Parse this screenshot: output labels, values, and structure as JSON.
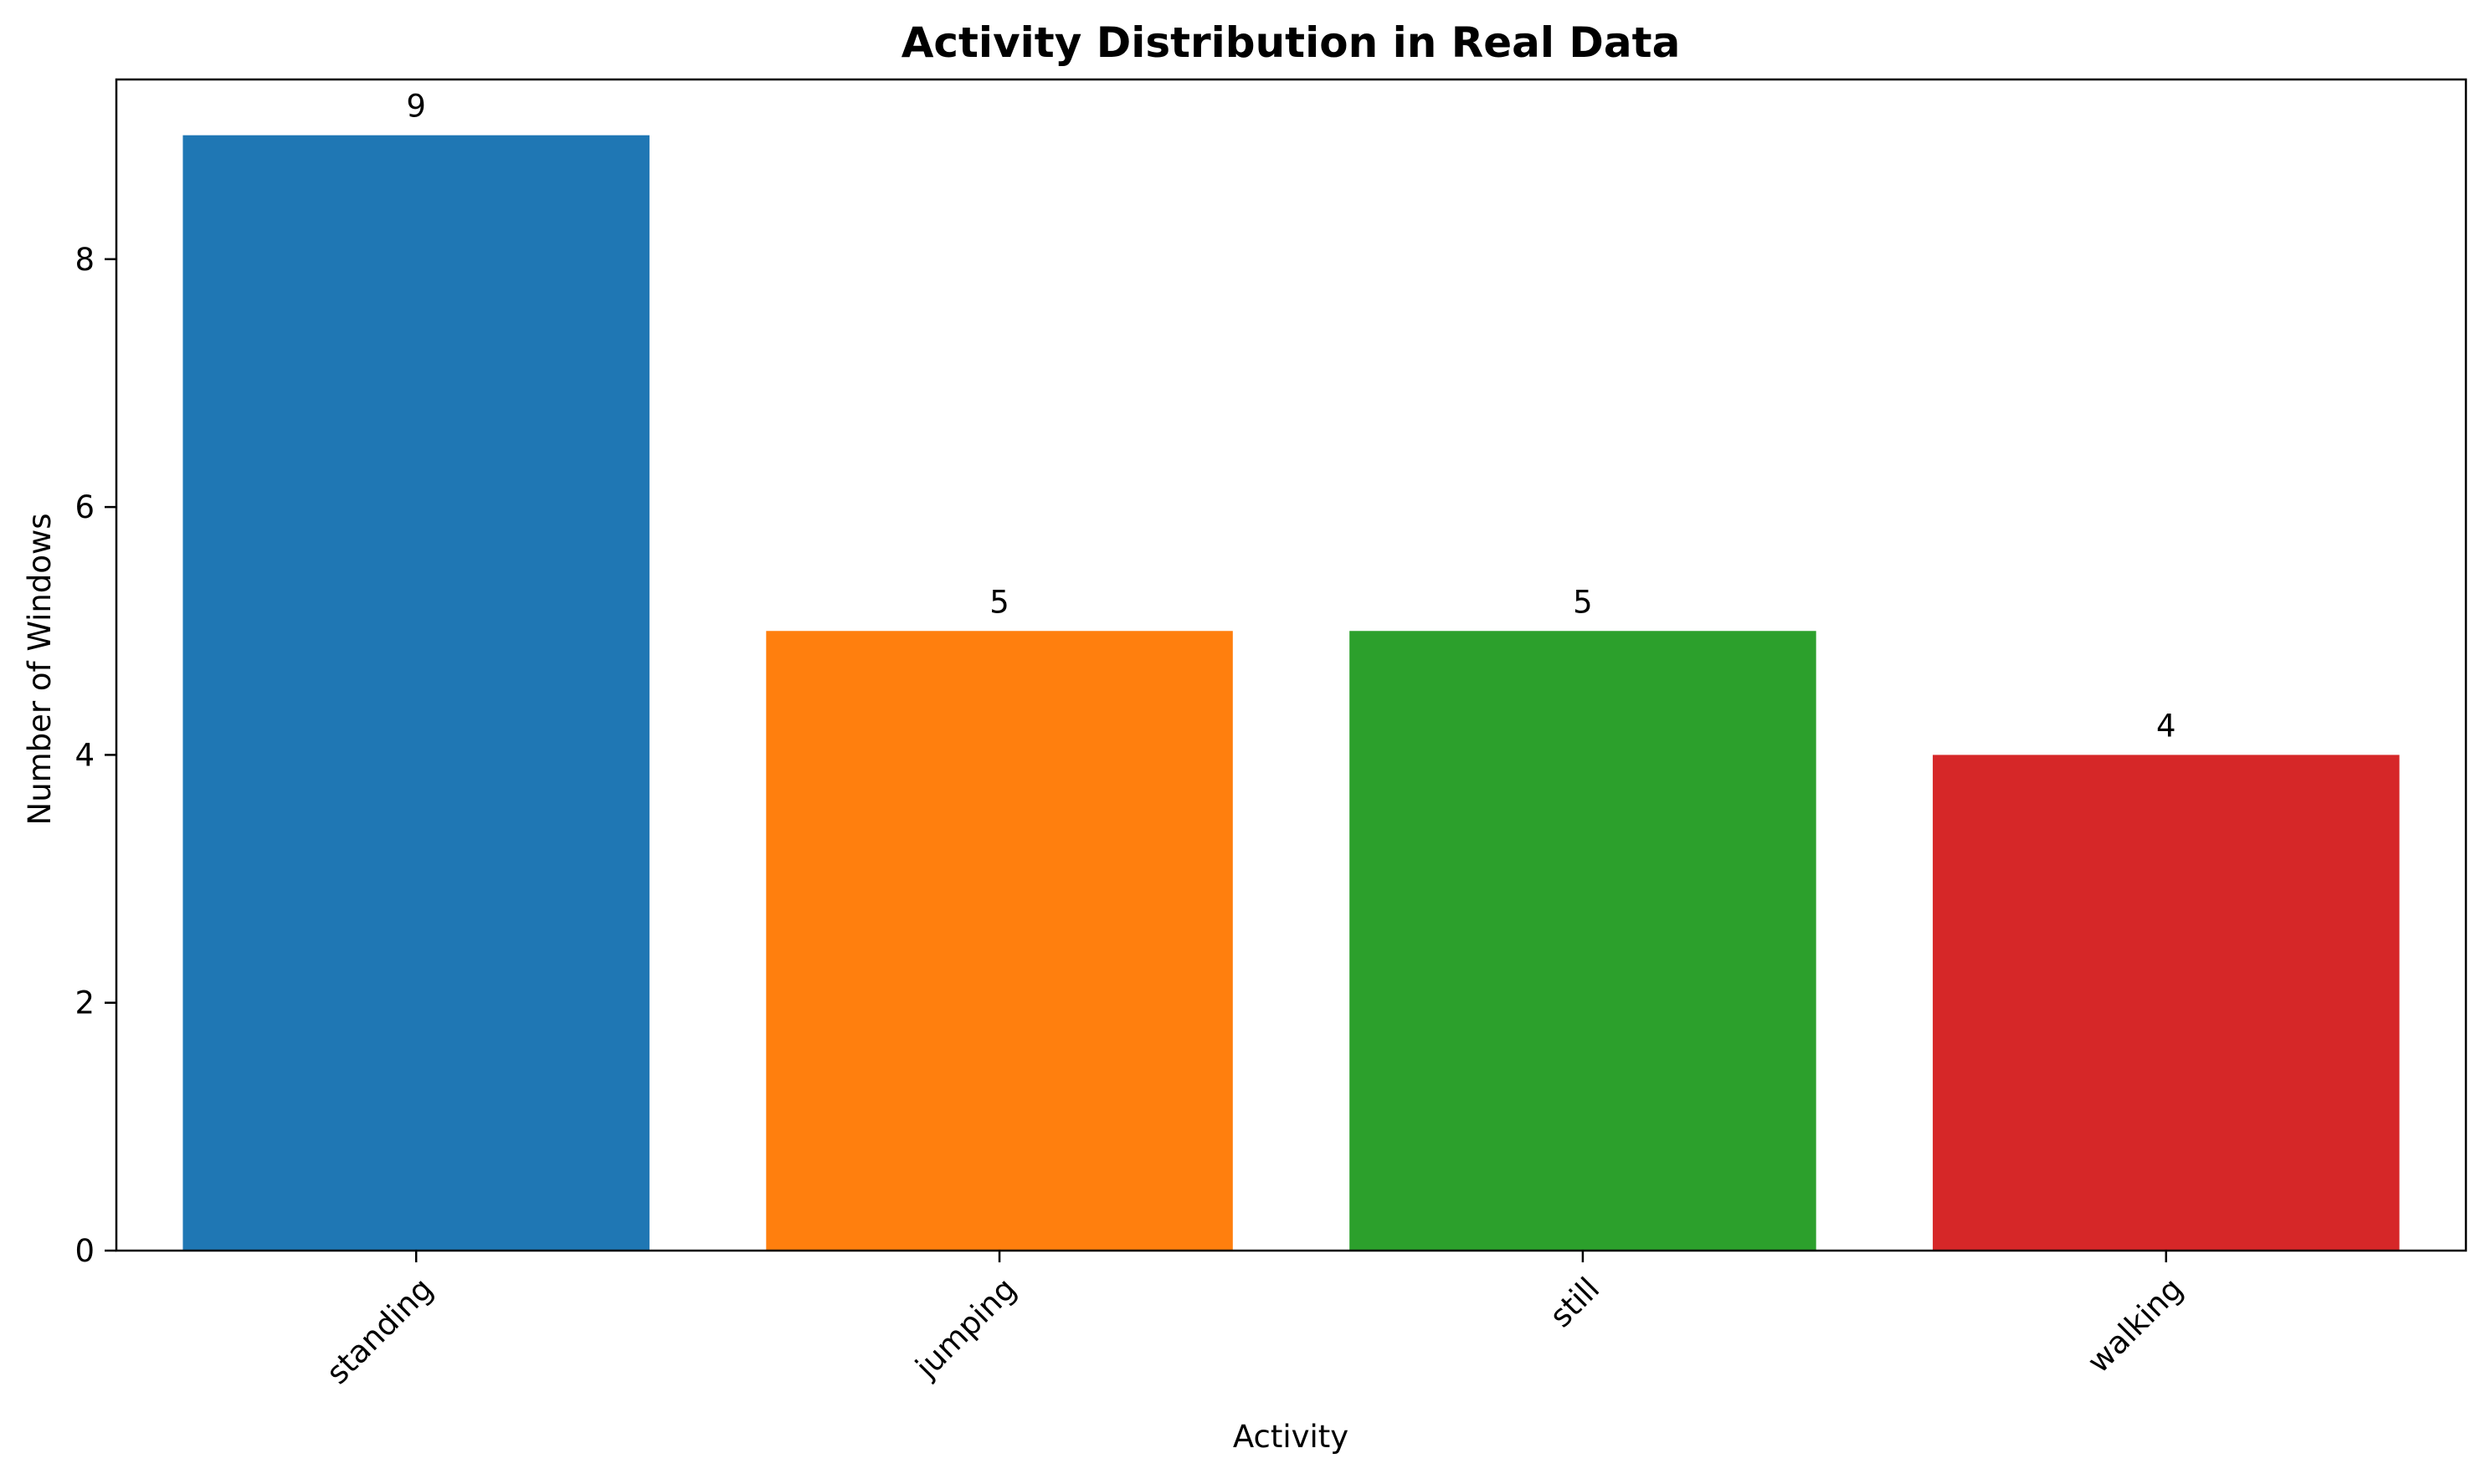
{
  "chart_data": {
    "type": "bar",
    "title": "Activity Distribution in Real Data",
    "xlabel": "Activity",
    "ylabel": "Number of Windows",
    "categories": [
      "standing",
      "jumping",
      "still",
      "walking"
    ],
    "values": [
      9,
      5,
      5,
      4
    ],
    "data_labels": [
      "9",
      "5",
      "5",
      "4"
    ],
    "colors": [
      "#1f77b4",
      "#ff7f0e",
      "#2ca02c",
      "#d62728"
    ],
    "ylim": [
      0,
      9.45
    ],
    "yticks": [
      0,
      2,
      4,
      6,
      8
    ],
    "xtick_rotation": 45,
    "grid": false,
    "legend": "none"
  }
}
